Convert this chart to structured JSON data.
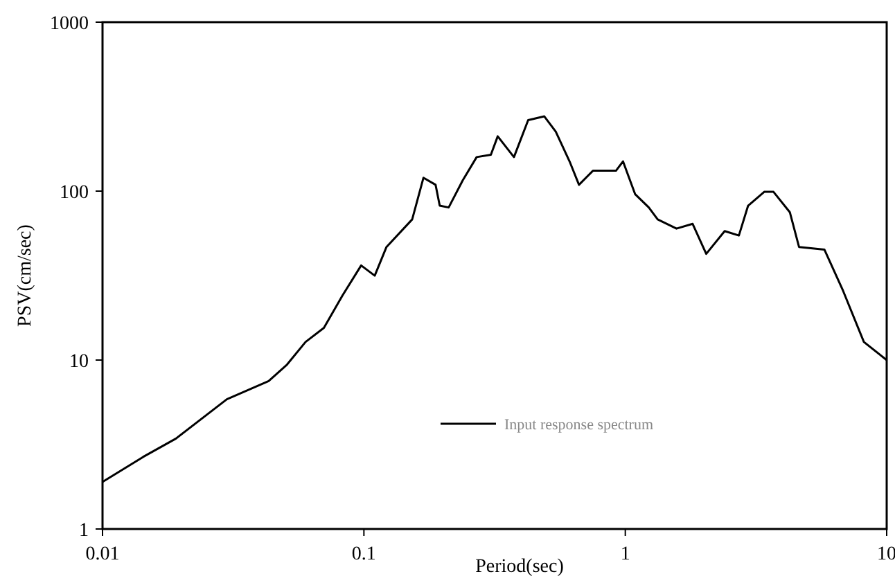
{
  "chart_data": {
    "type": "line",
    "xlabel": "Period(sec)",
    "ylabel": "PSV(cm/sec)",
    "log": "xy",
    "xlim": [
      0.01,
      10
    ],
    "ylim": [
      1,
      1000
    ],
    "xticks": [
      0.01,
      0.1,
      1,
      10
    ],
    "yticks": [
      1,
      10,
      100,
      1000
    ],
    "grid": false,
    "legend": "bottom right",
    "marker": "none",
    "line_style": "solid",
    "series": [
      {
        "name": "Input response spectrum",
        "color": "#000000",
        "x": [
          0.01,
          0.0143,
          0.0191,
          0.0299,
          0.0432,
          0.0508,
          0.0598,
          0.0703,
          0.0828,
          0.0976,
          0.11,
          0.122,
          0.153,
          0.169,
          0.188,
          0.195,
          0.211,
          0.239,
          0.27,
          0.306,
          0.325,
          0.375,
          0.425,
          0.49,
          0.542,
          0.612,
          0.665,
          0.752,
          0.921,
          0.98,
          1.09,
          1.23,
          1.33,
          1.57,
          1.81,
          2.04,
          2.4,
          2.72,
          2.95,
          3.4,
          3.69,
          4.26,
          4.62,
          5.78,
          6.81,
          8.18,
          10
        ],
        "values": [
          1.9,
          2.67,
          3.43,
          5.86,
          7.5,
          9.4,
          12.8,
          15.5,
          24.1,
          36.3,
          31.6,
          46.7,
          68,
          120,
          109,
          82,
          80,
          116,
          159,
          164,
          211,
          159,
          263,
          277,
          225,
          150,
          109,
          132,
          132,
          150,
          96,
          80,
          68,
          60,
          64,
          42.5,
          58,
          54.6,
          82,
          99,
          99,
          75,
          46.7,
          45,
          25.7,
          12.8,
          10
        ]
      }
    ]
  }
}
